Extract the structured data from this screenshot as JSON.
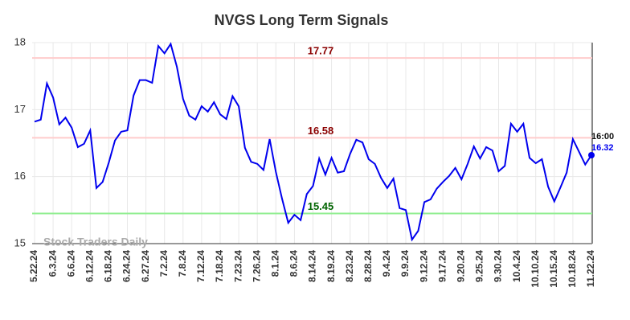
{
  "chart_data": {
    "type": "line",
    "title": "NVGS Long Term Signals",
    "watermark": "Stock Traders Daily",
    "end_time_label": "16:00",
    "categories": [
      "5.22.24",
      null,
      null,
      "6.3.24",
      null,
      null,
      "6.6.24",
      null,
      null,
      "6.12.24",
      null,
      null,
      "6.18.24",
      null,
      null,
      "6.24.24",
      null,
      null,
      "6.27.24",
      null,
      null,
      "7.2.24",
      null,
      null,
      "7.8.24",
      null,
      null,
      "7.12.24",
      null,
      null,
      "7.18.24",
      null,
      null,
      "7.23.24",
      null,
      null,
      "7.26.24",
      null,
      null,
      "8.1.24",
      null,
      null,
      "8.6.24",
      null,
      null,
      "8.14.24",
      null,
      null,
      "8.19.24",
      null,
      null,
      "8.23.24",
      null,
      null,
      "8.28.24",
      null,
      null,
      "9.4.24",
      null,
      null,
      "9.9.24",
      null,
      null,
      "9.12.24",
      null,
      null,
      "9.17.24",
      null,
      null,
      "9.20.24",
      null,
      null,
      "9.25.24",
      null,
      null,
      "9.30.24",
      null,
      null,
      "10.4.24",
      null,
      null,
      "10.10.24",
      null,
      null,
      "10.15.24",
      null,
      null,
      "10.18.24",
      null,
      null,
      "11.22.24"
    ],
    "series": [
      {
        "color": "#0000ee",
        "values": [
          16.82,
          16.85,
          17.39,
          17.18,
          16.78,
          16.88,
          16.73,
          16.44,
          16.49,
          16.69,
          15.83,
          15.92,
          16.21,
          16.54,
          16.67,
          16.69,
          17.21,
          17.44,
          17.44,
          17.4,
          17.95,
          17.84,
          17.98,
          17.64,
          17.16,
          16.91,
          16.85,
          17.05,
          16.97,
          17.11,
          16.93,
          16.86,
          17.2,
          17.05,
          16.43,
          16.22,
          16.19,
          16.1,
          16.56,
          16.07,
          15.67,
          15.31,
          15.43,
          15.35,
          15.74,
          15.86,
          16.27,
          16.03,
          16.28,
          16.06,
          16.08,
          16.34,
          16.55,
          16.51,
          16.26,
          16.19,
          15.98,
          15.83,
          15.97,
          15.53,
          15.5,
          15.06,
          15.19,
          15.62,
          15.66,
          15.82,
          15.92,
          16.01,
          16.13,
          15.96,
          16.19,
          16.45,
          16.27,
          16.44,
          16.39,
          16.08,
          16.16,
          16.79,
          16.67,
          16.79,
          16.28,
          16.2,
          16.26,
          15.85,
          15.63,
          15.84,
          16.06,
          16.56,
          16.37,
          16.18,
          16.32
        ]
      }
    ],
    "reference_lines": [
      {
        "value": 17.77,
        "line_color": "#ffcccc",
        "label_color": "#8b0000"
      },
      {
        "value": 16.58,
        "line_color": "#ffcccc",
        "label_color": "#8b0000"
      },
      {
        "value": 15.45,
        "line_color": "#90ee90",
        "label_color": "#006400"
      }
    ],
    "ylim": [
      15,
      18
    ],
    "yticks": [
      15,
      16,
      17,
      18
    ],
    "grid": true
  }
}
